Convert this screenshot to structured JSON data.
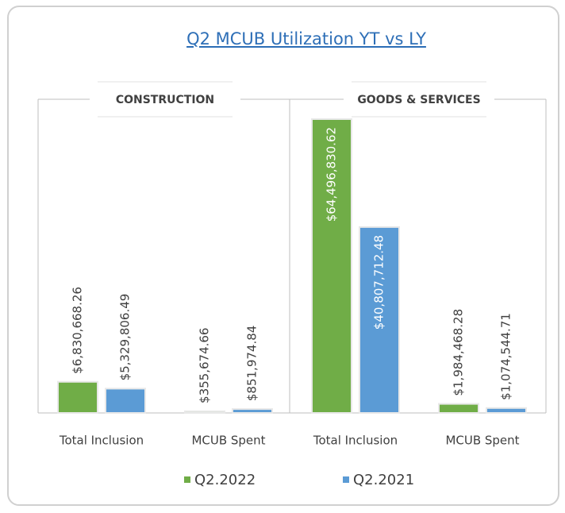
{
  "chart_data": {
    "type": "bar",
    "title": "Q2 MCUB Utilization YT vs LY",
    "groups": [
      {
        "name": "CONSTRUCTION",
        "categories": [
          "Total Inclusion",
          "MCUB Spent"
        ]
      },
      {
        "name": "GOODS & SERVICES",
        "categories": [
          "Total Inclusion",
          "MCUB Spent"
        ]
      }
    ],
    "series": [
      {
        "name": "Q2.2022",
        "color": "#70ad47",
        "values": [
          6830668.26,
          355674.66,
          64496830.62,
          1984468.28
        ],
        "value_labels": [
          "$6,830,668.26",
          "$355,674.66",
          "$64,496,830.62",
          "$1,984,468.28"
        ]
      },
      {
        "name": "Q2.2021",
        "color": "#5b9bd5",
        "values": [
          5329806.49,
          851974.84,
          40807712.48,
          1074544.71
        ],
        "value_labels": [
          "$5,329,806.49",
          "$851,974.84",
          "$40,807,712.48",
          "$1,074,544.71"
        ]
      }
    ]
  }
}
